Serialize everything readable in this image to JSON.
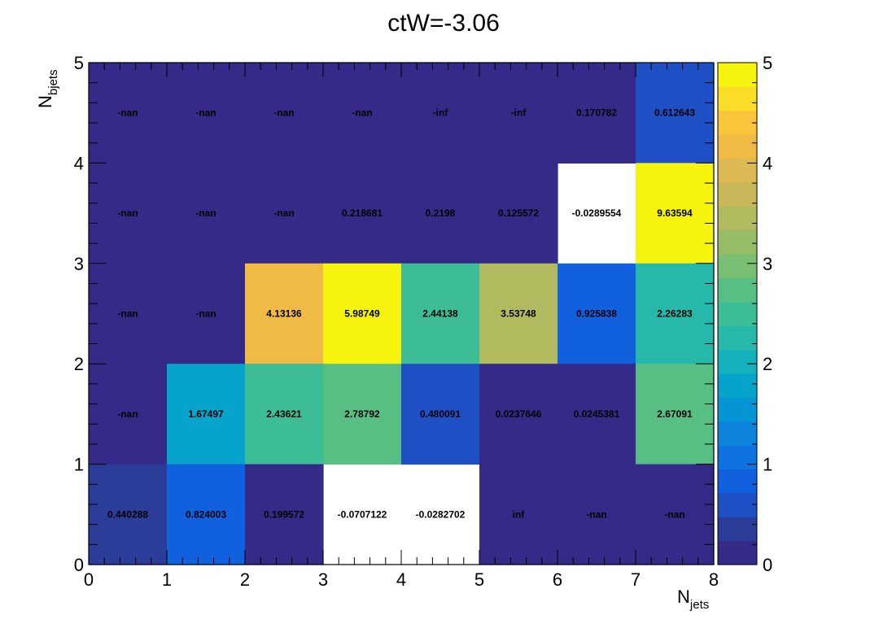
{
  "chart_data": {
    "type": "heatmap",
    "title": "ctW=-3.06",
    "xlabel": {
      "main": "N",
      "sub": "jets"
    },
    "ylabel": {
      "main": "N",
      "sub": "bjets"
    },
    "xlim": [
      0,
      8
    ],
    "ylim": [
      0,
      5
    ],
    "x_ticks": [
      "0",
      "1",
      "2",
      "3",
      "4",
      "5",
      "6",
      "7",
      "8"
    ],
    "y_ticks": [
      "0",
      "1",
      "2",
      "3",
      "4",
      "5"
    ],
    "z_range": [
      0,
      5
    ],
    "z_ticks": [
      "0",
      "1",
      "2",
      "3",
      "4",
      "5"
    ],
    "colorscale": [
      "#352a87",
      "#2c3d99",
      "#1f4fc4",
      "#1160de",
      "#0e73e0",
      "#0d84dc",
      "#0695d4",
      "#06a4ca",
      "#14b1bd",
      "#26b8a9",
      "#3dbd95",
      "#58bf84",
      "#79bf73",
      "#97bd68",
      "#b2ba5f",
      "#c9b85a",
      "#dcb953",
      "#efbb44",
      "#fac53a",
      "#f9dd27",
      "#f6f40f"
    ],
    "rows": [
      {
        "y_bin": [
          4,
          5
        ],
        "cells": [
          "-nan",
          "-nan",
          "-nan",
          "-nan",
          "-inf",
          "-inf",
          "0.170782",
          "0.612643"
        ]
      },
      {
        "y_bin": [
          3,
          4
        ],
        "cells": [
          "-nan",
          "-nan",
          "-nan",
          "0.218681",
          "0.2198",
          "0.125572",
          "-0.0289554",
          "9.63594"
        ]
      },
      {
        "y_bin": [
          2,
          3
        ],
        "cells": [
          "-nan",
          "-nan",
          "4.13136",
          "5.98749",
          "2.44138",
          "3.53748",
          "0.925838",
          "2.26283"
        ]
      },
      {
        "y_bin": [
          1,
          2
        ],
        "cells": [
          "-nan",
          "1.67497",
          "2.43621",
          "2.78792",
          "0.480091",
          "0.0237646",
          "0.0245381",
          "2.67091"
        ]
      },
      {
        "y_bin": [
          0,
          1
        ],
        "cells": [
          "0.440288",
          "0.824003",
          "0.199572",
          "-0.0707122",
          "-0.0282702",
          "inf",
          "-nan",
          "-nan"
        ]
      }
    ]
  }
}
